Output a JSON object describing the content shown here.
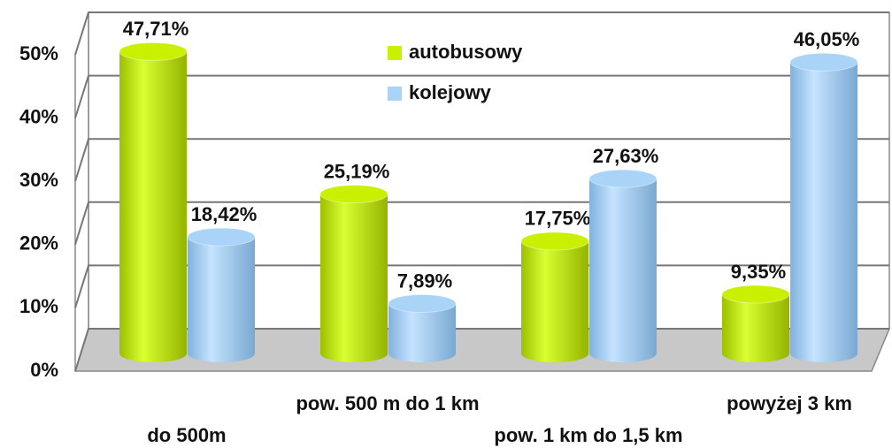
{
  "chart_data": {
    "type": "bar3d",
    "categories": [
      "do 500m",
      "pow. 500 m do 1 km",
      "pow. 1 km do 1,5 km",
      "powyżej 3 km"
    ],
    "series": [
      {
        "name": "autobusowy",
        "color": "#c8f000",
        "values": [
          47.71,
          25.19,
          17.75,
          9.35
        ],
        "value_labels": [
          "47,71%",
          "25,19%",
          "17,75%",
          "9,35%"
        ]
      },
      {
        "name": "kolejowy",
        "color": "#a9d3f7",
        "values": [
          18.42,
          7.89,
          27.63,
          46.05
        ],
        "value_labels": [
          "18,42%",
          "7,89%",
          "27,63%",
          "46,05%"
        ]
      }
    ],
    "ylim": [
      0,
      50
    ],
    "yticks": [
      {
        "value": 0,
        "label": "0%"
      },
      {
        "value": 10,
        "label": "10%"
      },
      {
        "value": 20,
        "label": "20%"
      },
      {
        "value": 30,
        "label": "30%"
      },
      {
        "value": 40,
        "label": "40%"
      },
      {
        "value": 50,
        "label": "50%"
      }
    ],
    "grid": true,
    "legend": "top"
  }
}
